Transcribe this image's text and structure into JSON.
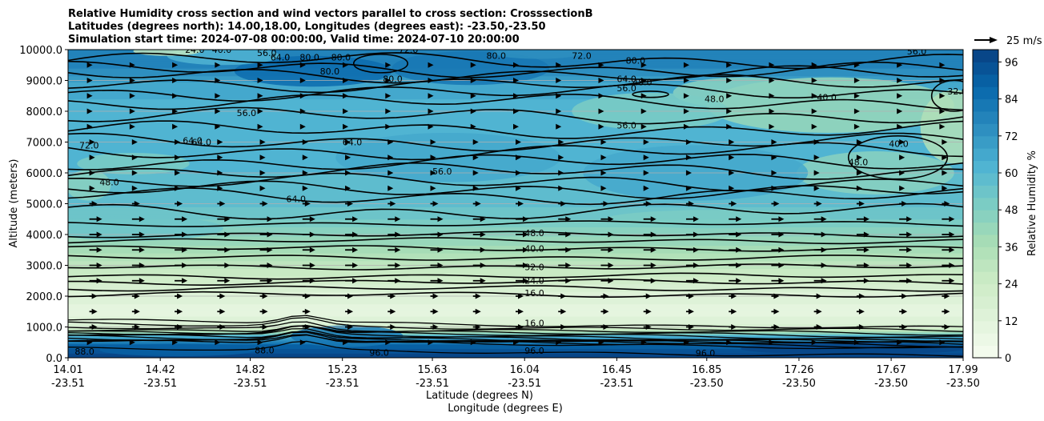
{
  "chart_data": {
    "type": "contourf",
    "title_lines": [
      "Relative Humidity cross section and wind vectors parallel to cross section: CrosssectionB",
      "Latitudes (degrees north): 14.00,18.00, Longitudes (degrees east): -23.50,-23.50",
      "Simulation start time: 2024-07-08 00:00:00, Valid time: 2024-07-10 20:00:00"
    ],
    "xlabel_lat": "Latitude (degrees N)",
    "xlabel_lon": "Longitude (degrees E)",
    "ylabel": "Altitude (meters)",
    "ylim": [
      0,
      10000
    ],
    "y_ticks": [
      "0.0",
      "1000.0",
      "2000.0",
      "3000.0",
      "4000.0",
      "5000.0",
      "6000.0",
      "7000.0",
      "8000.0",
      "9000.0",
      "10000.0"
    ],
    "x_ticks": [
      {
        "lat": "14.01",
        "lon": "-23.51"
      },
      {
        "lat": "14.42",
        "lon": "-23.51"
      },
      {
        "lat": "14.82",
        "lon": "-23.51"
      },
      {
        "lat": "15.23",
        "lon": "-23.51"
      },
      {
        "lat": "15.63",
        "lon": "-23.51"
      },
      {
        "lat": "16.04",
        "lon": "-23.51"
      },
      {
        "lat": "16.45",
        "lon": "-23.51"
      },
      {
        "lat": "16.85",
        "lon": "-23.50"
      },
      {
        "lat": "17.26",
        "lon": "-23.50"
      },
      {
        "lat": "17.67",
        "lon": "-23.50"
      },
      {
        "lat": "17.99",
        "lon": "-23.50"
      }
    ],
    "grid": true,
    "colorbar": {
      "label": "Relative Humidity %",
      "min": 0,
      "max": 100,
      "step": 4,
      "ticks": [
        "0",
        "12",
        "24",
        "36",
        "48",
        "60",
        "72",
        "84",
        "96"
      ],
      "colormap": "GnBu"
    },
    "quiver_key": "25 m/s",
    "rh_profile": [
      {
        "alt": 0,
        "rh": 97
      },
      {
        "alt": 200,
        "rh": 95
      },
      {
        "alt": 400,
        "rh": 88
      },
      {
        "alt": 700,
        "rh": 60
      },
      {
        "alt": 900,
        "rh": 25
      },
      {
        "alt": 1100,
        "rh": 14
      },
      {
        "alt": 1500,
        "rh": 10
      },
      {
        "alt": 2000,
        "rh": 14
      },
      {
        "alt": 2500,
        "rh": 22
      },
      {
        "alt": 3000,
        "rh": 30
      },
      {
        "alt": 3500,
        "rh": 38
      },
      {
        "alt": 4000,
        "rh": 45
      },
      {
        "alt": 4500,
        "rh": 52
      },
      {
        "alt": 5000,
        "rh": 57
      },
      {
        "alt": 6000,
        "rh": 60
      },
      {
        "alt": 7000,
        "rh": 62
      },
      {
        "alt": 8000,
        "rh": 62
      },
      {
        "alt": 8800,
        "rh": 66
      },
      {
        "alt": 9500,
        "rh": 78
      },
      {
        "alt": 10000,
        "rh": 76
      }
    ],
    "contour_labels": [
      {
        "text": "48.0",
        "lat": 16.04,
        "alt": 4000
      },
      {
        "text": "40.0",
        "lat": 16.04,
        "alt": 3500
      },
      {
        "text": "32.0",
        "lat": 16.04,
        "alt": 2900
      },
      {
        "text": "24.0",
        "lat": 16.04,
        "alt": 2450
      },
      {
        "text": "16.0",
        "lat": 16.04,
        "alt": 2050
      },
      {
        "text": "16.0",
        "lat": 16.04,
        "alt": 1080
      },
      {
        "text": "96.0",
        "lat": 16.04,
        "alt": 180
      },
      {
        "text": "96.0",
        "lat": 15.35,
        "alt": 120
      },
      {
        "text": "88.0",
        "lat": 14.84,
        "alt": 200
      },
      {
        "text": "88.0",
        "lat": 14.04,
        "alt": 150
      },
      {
        "text": "96.0",
        "lat": 16.8,
        "alt": 100
      },
      {
        "text": "96.0",
        "lat": 17.99,
        "alt": 50
      },
      {
        "text": "56.0",
        "lat": 15.63,
        "alt": 6000
      },
      {
        "text": "56.0",
        "lat": 16.45,
        "alt": 7500
      },
      {
        "text": "56.0",
        "lat": 16.45,
        "alt": 8700
      },
      {
        "text": "64.0",
        "lat": 16.45,
        "alt": 9000
      },
      {
        "text": "64.0",
        "lat": 14.56,
        "alt": 6950
      },
      {
        "text": "64.0",
        "lat": 15.23,
        "alt": 6950
      },
      {
        "text": "64.0",
        "lat": 14.52,
        "alt": 7000
      },
      {
        "text": "64.0",
        "lat": 14.98,
        "alt": 5100
      },
      {
        "text": "48.0",
        "lat": 14.15,
        "alt": 5650
      },
      {
        "text": "72.0",
        "lat": 14.06,
        "alt": 6850
      },
      {
        "text": "56.0",
        "lat": 14.76,
        "alt": 7900
      },
      {
        "text": "80.0",
        "lat": 15.13,
        "alt": 9250
      },
      {
        "text": "80.0",
        "lat": 15.41,
        "alt": 9000
      },
      {
        "text": "80.0",
        "lat": 15.87,
        "alt": 9750
      },
      {
        "text": "72.0",
        "lat": 16.25,
        "alt": 9750
      },
      {
        "text": "48.0",
        "lat": 16.52,
        "alt": 8900
      },
      {
        "text": "48.0",
        "lat": 16.84,
        "alt": 8350
      },
      {
        "text": "40.0",
        "lat": 17.34,
        "alt": 8400
      },
      {
        "text": "56.0",
        "lat": 17.74,
        "alt": 9900
      },
      {
        "text": "32.0",
        "lat": 17.92,
        "alt": 8600
      },
      {
        "text": "40.0",
        "lat": 17.66,
        "alt": 6900
      },
      {
        "text": "48.0",
        "lat": 17.48,
        "alt": 6300
      },
      {
        "text": "32.0",
        "lat": 17.99,
        "alt": 6900
      },
      {
        "text": "24.0",
        "lat": 14.53,
        "alt": 9950
      },
      {
        "text": "40.0",
        "lat": 14.65,
        "alt": 9950
      },
      {
        "text": "56.0",
        "lat": 14.85,
        "alt": 9850
      },
      {
        "text": "64.0",
        "lat": 14.91,
        "alt": 9700
      },
      {
        "text": "80.0",
        "lat": 15.04,
        "alt": 9700
      },
      {
        "text": "80.0",
        "lat": 15.18,
        "alt": 9700
      },
      {
        "text": "72.0",
        "lat": 15.48,
        "alt": 9950
      },
      {
        "text": "80.0",
        "lat": 16.49,
        "alt": 9600
      }
    ]
  }
}
